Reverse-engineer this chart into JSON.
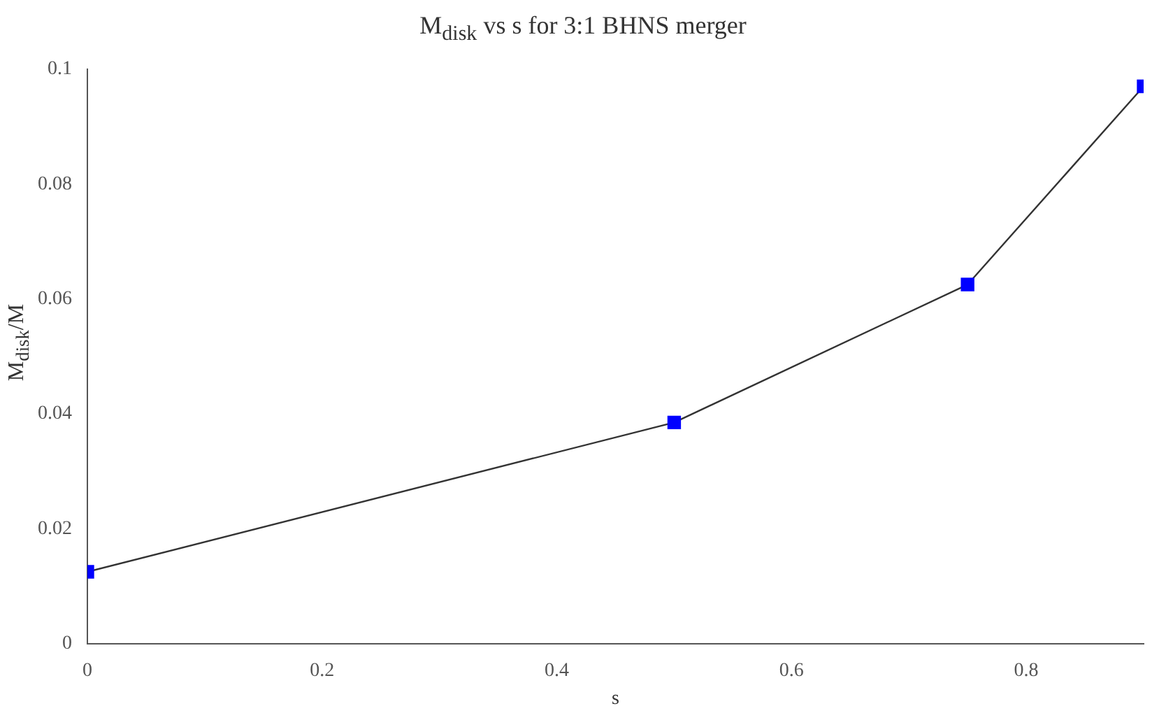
{
  "chart_data": {
    "type": "line",
    "title": "M$_{disk}$ vs s for 3:1 BHNS merger",
    "xlabel": "s",
    "ylabel": "M$_{disk}$/M",
    "x": [
      0,
      0.5,
      0.75,
      0.9
    ],
    "series": [
      {
        "color": "#0000ff",
        "values": [
          0.0125,
          0.0385,
          0.0625,
          0.097
        ]
      }
    ],
    "xlim": [
      0,
      0.9
    ],
    "xticks": [
      0,
      0.2,
      0.4,
      0.6,
      0.8
    ],
    "ylim": [
      0,
      0.1
    ],
    "yticks": [
      0,
      0.02,
      0.04,
      0.06,
      0.08,
      {
        "value": 0.1,
        "label": "0.1"
      }
    ],
    "marker": "square",
    "line_style": "solid",
    "grid": false,
    "legend": false
  }
}
